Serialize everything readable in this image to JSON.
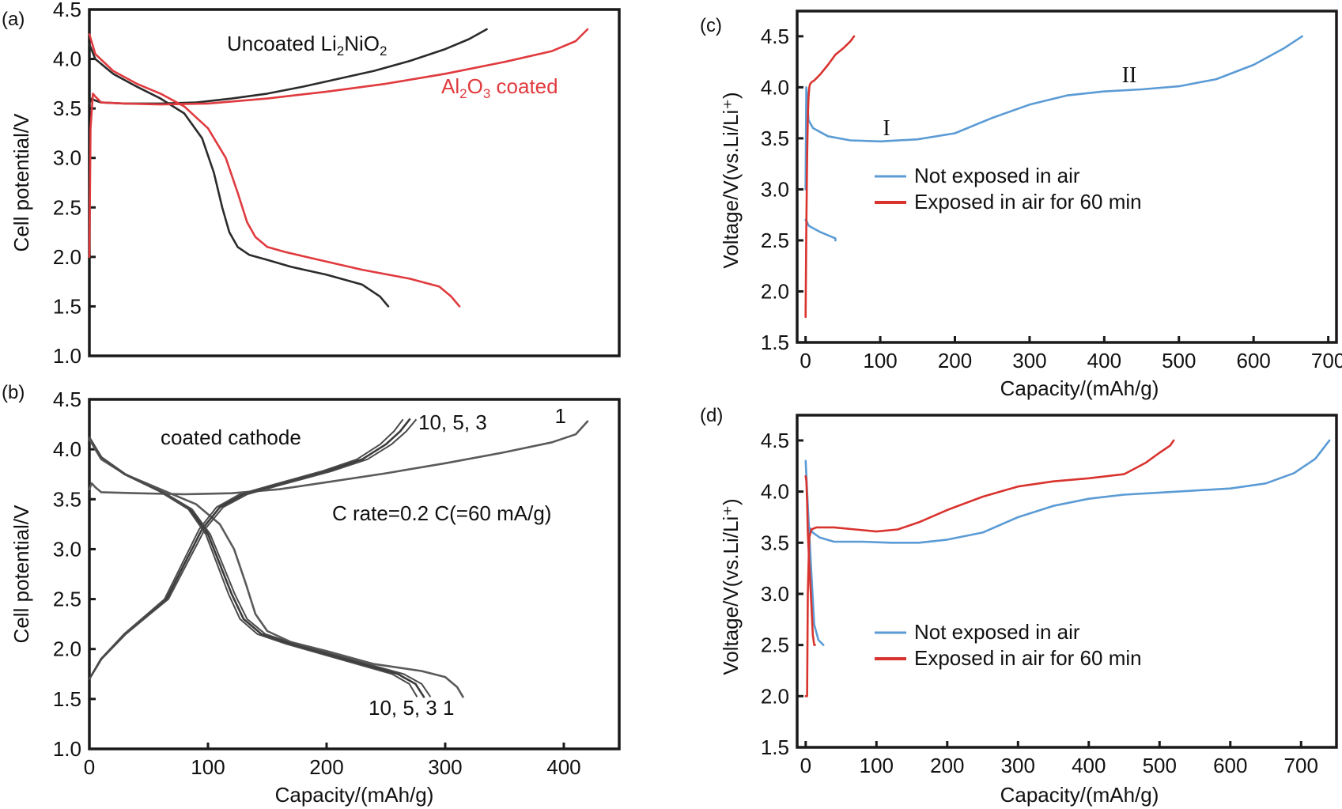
{
  "colors": {
    "black_curve": "#2b2b2b",
    "red_curve": "#e03a3e",
    "gray_curve": "#5a5a5a",
    "blue_curve": "#5b9bd5",
    "red_curve_cd": "#d9332e"
  },
  "chart_data": [
    {
      "id": "a",
      "panel_label": "(a)",
      "type": "line",
      "title": "",
      "xlabel": "",
      "ylabel": "Cell potential/V",
      "xlim": [
        0,
        450
      ],
      "ylim": [
        1.0,
        4.5
      ],
      "yticks": [
        "1.0",
        "1.5",
        "2.0",
        "2.5",
        "3.0",
        "3.5",
        "4.0",
        "4.5"
      ],
      "xticks": [],
      "annotations": [
        {
          "text_parts": [
            "Uncoated Li",
            "2",
            "NiO",
            "2"
          ],
          "color": "#111111"
        },
        {
          "text_parts": [
            "Al",
            "2",
            "O",
            "3",
            " coated"
          ],
          "color": "#e03a3e"
        }
      ],
      "series": [
        {
          "name": "Uncoated Li2NiO2 charge",
          "color": "#2b2b2b",
          "x": [
            0,
            2,
            5,
            10,
            30,
            60,
            90,
            120,
            150,
            180,
            210,
            240,
            270,
            300,
            320,
            335
          ],
          "y": [
            3.55,
            3.6,
            3.58,
            3.56,
            3.55,
            3.55,
            3.56,
            3.6,
            3.65,
            3.72,
            3.8,
            3.88,
            3.98,
            4.1,
            4.2,
            4.3
          ]
        },
        {
          "name": "Uncoated Li2NiO2 discharge",
          "color": "#2b2b2b",
          "x": [
            0,
            5,
            20,
            40,
            60,
            80,
            95,
            105,
            112,
            118,
            125,
            135,
            150,
            170,
            200,
            230,
            245,
            252
          ],
          "y": [
            4.15,
            4.0,
            3.85,
            3.72,
            3.6,
            3.45,
            3.2,
            2.85,
            2.5,
            2.25,
            2.1,
            2.02,
            1.97,
            1.9,
            1.82,
            1.72,
            1.6,
            1.5
          ]
        },
        {
          "name": "Al2O3 coated charge",
          "color": "#e03a3e",
          "x": [
            0,
            1,
            3,
            5,
            10,
            30,
            60,
            100,
            150,
            200,
            250,
            300,
            350,
            390,
            410,
            420
          ],
          "y": [
            2.0,
            3.3,
            3.65,
            3.62,
            3.56,
            3.55,
            3.54,
            3.55,
            3.6,
            3.67,
            3.75,
            3.85,
            3.97,
            4.08,
            4.18,
            4.3
          ]
        },
        {
          "name": "Al2O3 coated discharge",
          "color": "#e03a3e",
          "x": [
            0,
            5,
            20,
            40,
            60,
            80,
            100,
            115,
            125,
            133,
            140,
            150,
            165,
            190,
            230,
            270,
            295,
            305,
            312
          ],
          "y": [
            4.25,
            4.05,
            3.88,
            3.75,
            3.65,
            3.52,
            3.3,
            3.0,
            2.65,
            2.35,
            2.2,
            2.1,
            2.05,
            1.98,
            1.87,
            1.78,
            1.7,
            1.6,
            1.5
          ]
        }
      ]
    },
    {
      "id": "b",
      "panel_label": "(b)",
      "type": "line",
      "title": "",
      "xlabel": "Capacity/(mAh/g)",
      "ylabel": "Cell potential/V",
      "xlim": [
        0,
        450
      ],
      "ylim": [
        1.0,
        4.5
      ],
      "yticks": [
        "1.0",
        "1.5",
        "2.0",
        "2.5",
        "3.0",
        "3.5",
        "4.0",
        "4.5"
      ],
      "xticks": [
        "0",
        "100",
        "200",
        "300",
        "400"
      ],
      "annotations": [
        {
          "text": "coated cathode"
        },
        {
          "text": "C rate=0.2 C(=60 mA/g)"
        },
        {
          "text": "10, 5, 3",
          "where": "charge-end"
        },
        {
          "text": "1",
          "where": "charge-end-cycle1"
        },
        {
          "text": "10, 5, 3 1",
          "where": "discharge-end"
        }
      ],
      "series": [
        {
          "name": "Cycle 1 charge",
          "color": "#5a5a5a",
          "x": [
            0,
            2,
            5,
            10,
            40,
            80,
            120,
            160,
            200,
            250,
            300,
            350,
            390,
            410,
            420
          ],
          "y": [
            3.6,
            3.66,
            3.62,
            3.57,
            3.56,
            3.55,
            3.56,
            3.6,
            3.67,
            3.76,
            3.86,
            3.97,
            4.07,
            4.15,
            4.28
          ]
        },
        {
          "name": "Cycle 1 discharge",
          "color": "#5a5a5a",
          "x": [
            0,
            10,
            30,
            60,
            90,
            110,
            122,
            132,
            140,
            150,
            170,
            200,
            240,
            280,
            300,
            310,
            315
          ],
          "y": [
            4.1,
            3.9,
            3.75,
            3.6,
            3.45,
            3.25,
            3.0,
            2.65,
            2.35,
            2.18,
            2.07,
            1.98,
            1.85,
            1.78,
            1.72,
            1.62,
            1.52
          ]
        },
        {
          "name": "Cycles 3/5/10 charge",
          "color": "#3a3a3a",
          "x": [
            0,
            10,
            30,
            50,
            65,
            80,
            95,
            110,
            130,
            160,
            200,
            230,
            250,
            262,
            270
          ],
          "y": [
            1.7,
            1.9,
            2.15,
            2.35,
            2.5,
            2.85,
            3.2,
            3.42,
            3.55,
            3.65,
            3.78,
            3.9,
            4.05,
            4.18,
            4.3
          ]
        },
        {
          "name": "Cycles 3/5/10 discharge",
          "color": "#3a3a3a",
          "x": [
            0,
            10,
            30,
            60,
            85,
            100,
            110,
            120,
            130,
            145,
            170,
            200,
            230,
            260,
            275,
            282
          ],
          "y": [
            4.12,
            3.92,
            3.75,
            3.58,
            3.4,
            3.15,
            2.85,
            2.55,
            2.3,
            2.15,
            2.05,
            1.95,
            1.85,
            1.75,
            1.65,
            1.52
          ]
        }
      ]
    },
    {
      "id": "c",
      "panel_label": "(c)",
      "type": "line",
      "title": "",
      "xlabel": "Capacity/(mAh/g)",
      "ylabel": "Voltage/V(vs.Li/Li⁺)",
      "xlim": [
        -10,
        700
      ],
      "ylim": [
        1.5,
        4.7
      ],
      "yticks": [
        "1.5",
        "2.0",
        "2.5",
        "3.0",
        "3.5",
        "4.0",
        "4.5"
      ],
      "xticks": [
        "0",
        "100",
        "200",
        "300",
        "400",
        "500",
        "600",
        "700"
      ],
      "annotations": [
        {
          "text": "I",
          "near_x": 110,
          "near_y": 3.55
        },
        {
          "text": "II",
          "near_x": 440,
          "near_y": 4.05
        }
      ],
      "legend": {
        "position": "center-right",
        "entries": [
          "Not exposed in air",
          "Exposed in air for 60 min"
        ]
      },
      "series": [
        {
          "name": "Not exposed in air",
          "color": "#5b9bd5",
          "x": [
            0,
            2,
            3,
            5,
            20,
            40,
            40
          ],
          "y": [
            2.7,
            2.68,
            2.66,
            2.64,
            2.58,
            2.52,
            2.5
          ],
          "segment": "discharge"
        },
        {
          "name": "Not exposed in air",
          "color": "#5b9bd5",
          "x": [
            0,
            1,
            2,
            4,
            10,
            30,
            60,
            100,
            150,
            200,
            250,
            300,
            350,
            400,
            450,
            500,
            550,
            600,
            640,
            665
          ],
          "y": [
            3.0,
            4.0,
            3.9,
            3.68,
            3.6,
            3.52,
            3.48,
            3.47,
            3.49,
            3.55,
            3.7,
            3.83,
            3.92,
            3.96,
            3.98,
            4.01,
            4.08,
            4.22,
            4.38,
            4.5
          ],
          "segment": "charge"
        },
        {
          "name": "Exposed in air for 60 min",
          "color": "#d9332e",
          "x": [
            0,
            1,
            2,
            3,
            4,
            5,
            6,
            8,
            12,
            20,
            30,
            40,
            50,
            60,
            65
          ],
          "y": [
            1.75,
            2.6,
            3.3,
            3.7,
            3.9,
            4.0,
            4.03,
            4.05,
            4.07,
            4.13,
            4.22,
            4.32,
            4.38,
            4.45,
            4.5
          ]
        }
      ]
    },
    {
      "id": "d",
      "panel_label": "(d)",
      "type": "line",
      "title": "",
      "xlabel": "Capacity/(mAh/g)",
      "ylabel": "Voltage/V(vs.Li/Li⁺)",
      "xlim": [
        -10,
        750
      ],
      "ylim": [
        1.5,
        4.7
      ],
      "yticks": [
        "1.5",
        "2.0",
        "2.5",
        "3.0",
        "3.5",
        "4.0",
        "4.5"
      ],
      "xticks": [
        "0",
        "100",
        "200",
        "300",
        "400",
        "500",
        "600",
        "700"
      ],
      "annotations": [],
      "legend": {
        "position": "bottom-right",
        "entries": [
          "Not exposed in air",
          "Exposed in air for 60 min"
        ]
      },
      "series": [
        {
          "name": "Not exposed in air",
          "color": "#5b9bd5",
          "x": [
            0,
            2,
            5,
            8,
            12,
            18,
            25
          ],
          "y": [
            4.3,
            4.0,
            3.6,
            3.2,
            2.7,
            2.55,
            2.5
          ],
          "segment": "discharge"
        },
        {
          "name": "Not exposed in air",
          "color": "#5b9bd5",
          "x": [
            5,
            10,
            20,
            40,
            80,
            120,
            160,
            200,
            250,
            300,
            350,
            400,
            450,
            500,
            550,
            600,
            650,
            690,
            720,
            740
          ],
          "y": [
            3.65,
            3.6,
            3.55,
            3.51,
            3.51,
            3.5,
            3.5,
            3.53,
            3.6,
            3.75,
            3.86,
            3.93,
            3.97,
            3.99,
            4.01,
            4.03,
            4.08,
            4.18,
            4.32,
            4.5
          ],
          "segment": "charge"
        },
        {
          "name": "Exposed in air for 60 min",
          "color": "#d9332e",
          "x": [
            0,
            1,
            2,
            3,
            5,
            8,
            10,
            12,
            13
          ],
          "y": [
            4.15,
            4.1,
            3.9,
            3.6,
            3.3,
            2.9,
            2.6,
            2.5,
            2.5
          ],
          "segment": "discharge"
        },
        {
          "name": "Exposed in air for 60 min",
          "color": "#d9332e",
          "x": [
            0,
            2,
            3,
            5,
            8,
            15,
            40,
            70,
            100,
            130,
            160,
            200,
            250,
            300,
            350,
            400,
            450,
            480,
            500,
            515,
            520
          ],
          "y": [
            2.0,
            2.0,
            3.0,
            3.55,
            3.63,
            3.65,
            3.65,
            3.63,
            3.61,
            3.63,
            3.7,
            3.82,
            3.95,
            4.05,
            4.1,
            4.13,
            4.17,
            4.28,
            4.38,
            4.45,
            4.5
          ]
        }
      ]
    }
  ]
}
